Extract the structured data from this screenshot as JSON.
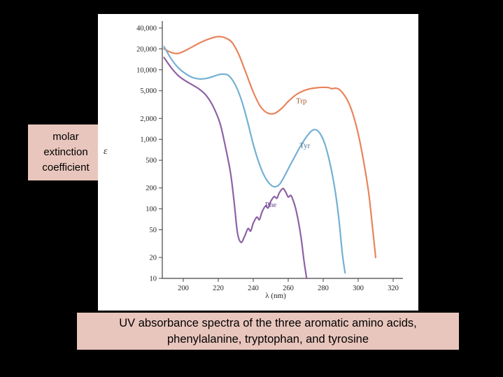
{
  "page": {
    "background": "#000000"
  },
  "left_label": {
    "background": "#e9c6bd",
    "lines": [
      "molar",
      "extinction",
      "coefficient"
    ]
  },
  "caption": {
    "background": "#e9c6bd",
    "lines": [
      "UV absorbance spectra of the three aromatic amino acids,",
      "phenylalanine, tryptophan, and tyrosine"
    ]
  },
  "chart_data": {
    "type": "line",
    "title": "",
    "x_label": "λ (nm)",
    "y_label": "ε",
    "x_scale": "linear",
    "y_scale": "log",
    "x_range": [
      188,
      326
    ],
    "y_range": [
      10,
      48000
    ],
    "x_ticks": [
      200,
      220,
      240,
      260,
      280,
      300,
      320
    ],
    "y_ticks": [
      10,
      20,
      50,
      100,
      200,
      500,
      1000,
      2000,
      5000,
      10000,
      20000,
      40000
    ],
    "y_tick_labels": [
      "10",
      "20",
      "50",
      "100",
      "200",
      "500",
      "1,000",
      "2,000",
      "5,000",
      "10,000",
      "20,000",
      "40,000"
    ],
    "grid": false,
    "background": "#ffffff",
    "axis_color": "#444444",
    "series": [
      {
        "name": "Trp",
        "color": "#e8845c",
        "label_color": "#a8542a",
        "label_at": [
          267.5,
          3300
        ],
        "points": [
          [
            189,
            20000
          ],
          [
            193,
            17800
          ],
          [
            197,
            17200
          ],
          [
            201,
            18800
          ],
          [
            206,
            22000
          ],
          [
            211,
            25500
          ],
          [
            216,
            28500
          ],
          [
            220,
            30000
          ],
          [
            224,
            28800
          ],
          [
            228,
            24500
          ],
          [
            232,
            16000
          ],
          [
            236,
            8800
          ],
          [
            240,
            4800
          ],
          [
            244,
            3000
          ],
          [
            248,
            2400
          ],
          [
            252,
            2350
          ],
          [
            256,
            2750
          ],
          [
            260,
            3500
          ],
          [
            264,
            4300
          ],
          [
            268,
            4900
          ],
          [
            272,
            5300
          ],
          [
            276,
            5500
          ],
          [
            280,
            5600
          ],
          [
            283,
            5550
          ],
          [
            285,
            5350
          ],
          [
            287,
            5450
          ],
          [
            289,
            5250
          ],
          [
            291,
            4700
          ],
          [
            294,
            3600
          ],
          [
            297,
            2300
          ],
          [
            300,
            1200
          ],
          [
            303,
            500
          ],
          [
            306,
            170
          ],
          [
            308,
            60
          ],
          [
            310,
            20
          ]
        ]
      },
      {
        "name": "Tyr",
        "color": "#74b0d4",
        "label_color": "#46708c",
        "label_at": [
          269.5,
          750
        ],
        "points": [
          [
            189,
            21500
          ],
          [
            193,
            14500
          ],
          [
            197,
            10800
          ],
          [
            201,
            8900
          ],
          [
            205,
            7800
          ],
          [
            209,
            7400
          ],
          [
            213,
            7500
          ],
          [
            217,
            8000
          ],
          [
            221,
            8600
          ],
          [
            225,
            8500
          ],
          [
            228,
            7200
          ],
          [
            231,
            5200
          ],
          [
            234,
            3200
          ],
          [
            237,
            1700
          ],
          [
            240,
            850
          ],
          [
            243,
            480
          ],
          [
            246,
            310
          ],
          [
            249,
            235
          ],
          [
            252,
            208
          ],
          [
            255,
            225
          ],
          [
            258,
            300
          ],
          [
            261,
            420
          ],
          [
            264,
            580
          ],
          [
            267,
            800
          ],
          [
            270,
            1050
          ],
          [
            273,
            1300
          ],
          [
            275,
            1380
          ],
          [
            277,
            1320
          ],
          [
            279,
            1120
          ],
          [
            281,
            850
          ],
          [
            283,
            560
          ],
          [
            285,
            330
          ],
          [
            287,
            170
          ],
          [
            289,
            70
          ],
          [
            291,
            22
          ],
          [
            292.5,
            12
          ]
        ]
      },
      {
        "name": "Phe",
        "color": "#8e62a6",
        "label_color": "#6a4288",
        "label_at": [
          250,
          106
        ],
        "points": [
          [
            189,
            15000
          ],
          [
            193,
            10800
          ],
          [
            197,
            8300
          ],
          [
            201,
            7000
          ],
          [
            205,
            6100
          ],
          [
            209,
            5300
          ],
          [
            213,
            4300
          ],
          [
            217,
            3000
          ],
          [
            221,
            1700
          ],
          [
            224,
            800
          ],
          [
            227,
            330
          ],
          [
            229,
            130
          ],
          [
            231,
            45
          ],
          [
            233,
            33
          ],
          [
            235,
            40
          ],
          [
            237,
            52
          ],
          [
            238.5,
            48
          ],
          [
            240,
            62
          ],
          [
            242,
            76
          ],
          [
            243.5,
            70
          ],
          [
            245,
            90
          ],
          [
            247,
            110
          ],
          [
            248.5,
            103
          ],
          [
            250,
            128
          ],
          [
            252,
            150
          ],
          [
            253.5,
            142
          ],
          [
            255,
            172
          ],
          [
            257,
            196
          ],
          [
            258.5,
            175
          ],
          [
            260,
            148
          ],
          [
            261.5,
            156
          ],
          [
            263,
            128
          ],
          [
            264.5,
            95
          ],
          [
            266,
            62
          ],
          [
            267.5,
            36
          ],
          [
            269,
            18
          ],
          [
            270.5,
            10
          ]
        ]
      }
    ]
  }
}
